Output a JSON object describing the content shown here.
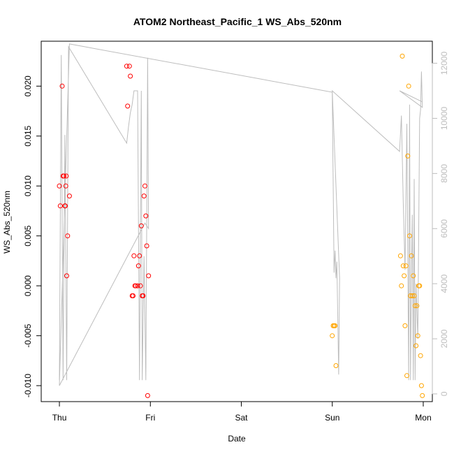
{
  "chart_data": {
    "type": "scatter",
    "title": "ATOM2 Northeast_Pacific_1 WS_Abs_520nm",
    "xlabel": "Date",
    "ylabel": "WS_Abs_520nm",
    "x_tick_labels": [
      "Thu",
      "Fri",
      "Sat",
      "Sun",
      "Mon"
    ],
    "x_tick_days": [
      0,
      1,
      2,
      3,
      4
    ],
    "xlim_days": [
      -0.2,
      4.1
    ],
    "ylim": [
      -0.0116,
      0.0245
    ],
    "y_ticks": [
      -0.01,
      -0.005,
      0.0,
      0.005,
      0.01,
      0.015,
      0.02
    ],
    "y_tick_labels": [
      "-0.010",
      "-0.005",
      "0.000",
      "0.005",
      "0.010",
      "0.015",
      "0.020"
    ],
    "y2lim": [
      -280,
      12800
    ],
    "y2_ticks": [
      0,
      2000,
      4000,
      6000,
      8000,
      10000,
      12000
    ],
    "y2_tick_labels": [
      "0",
      "2000",
      "4000",
      "6000",
      "8000",
      "10000",
      "12000"
    ],
    "grid": false,
    "series": [
      {
        "color": "#ff0000",
        "points": [
          [
            0.0,
            0.01
          ],
          [
            0.01,
            0.008
          ],
          [
            0.03,
            0.02
          ],
          [
            0.04,
            0.011
          ],
          [
            0.05,
            0.011
          ],
          [
            0.06,
            0.008
          ],
          [
            0.065,
            0.008
          ],
          [
            0.07,
            0.01
          ],
          [
            0.075,
            0.011
          ],
          [
            0.08,
            0.001
          ],
          [
            0.09,
            0.005
          ],
          [
            0.11,
            0.009
          ],
          [
            0.74,
            0.022
          ],
          [
            0.75,
            0.018
          ],
          [
            0.77,
            0.022
          ],
          [
            0.78,
            0.021
          ],
          [
            0.8,
            -0.001
          ],
          [
            0.81,
            -0.001
          ],
          [
            0.82,
            0.003
          ],
          [
            0.83,
            0.0
          ],
          [
            0.84,
            0.0
          ],
          [
            0.86,
            0.0
          ],
          [
            0.87,
            0.002
          ],
          [
            0.88,
            0.003
          ],
          [
            0.89,
            0.0
          ],
          [
            0.9,
            0.006
          ],
          [
            0.91,
            -0.001
          ],
          [
            0.92,
            -0.001
          ],
          [
            0.93,
            0.009
          ],
          [
            0.94,
            0.01
          ],
          [
            0.95,
            0.007
          ],
          [
            0.96,
            0.004
          ],
          [
            0.97,
            -0.011
          ],
          [
            0.98,
            0.001
          ]
        ]
      },
      {
        "color": "#ffa500",
        "points": [
          [
            3.0,
            -0.005
          ],
          [
            3.01,
            -0.004
          ],
          [
            3.02,
            -0.004
          ],
          [
            3.03,
            -0.004
          ],
          [
            3.04,
            -0.008
          ],
          [
            3.75,
            0.003
          ],
          [
            3.76,
            0.0
          ],
          [
            3.77,
            0.023
          ],
          [
            3.78,
            0.002
          ],
          [
            3.79,
            0.001
          ],
          [
            3.8,
            -0.004
          ],
          [
            3.81,
            0.002
          ],
          [
            3.82,
            -0.009
          ],
          [
            3.83,
            0.013
          ],
          [
            3.84,
            0.02
          ],
          [
            3.85,
            0.005
          ],
          [
            3.86,
            -0.001
          ],
          [
            3.87,
            0.003
          ],
          [
            3.88,
            -0.001
          ],
          [
            3.89,
            0.001
          ],
          [
            3.9,
            -0.001
          ],
          [
            3.91,
            -0.002
          ],
          [
            3.92,
            -0.006
          ],
          [
            3.93,
            -0.002
          ],
          [
            3.94,
            -0.005
          ],
          [
            3.95,
            0.0
          ],
          [
            3.96,
            0.0
          ],
          [
            3.97,
            -0.007
          ],
          [
            3.98,
            -0.01
          ],
          [
            3.99,
            -0.011
          ]
        ]
      },
      {
        "color": "#bdbdbd",
        "axis": "right",
        "style": "line",
        "points": [
          [
            0.0,
            500
          ],
          [
            0.02,
            12300
          ],
          [
            0.04,
            500
          ],
          [
            0.06,
            9400
          ],
          [
            0.08,
            500
          ],
          [
            0.1,
            12600
          ],
          [
            0.74,
            9100
          ],
          [
            0.76,
            9700
          ],
          [
            0.78,
            10200
          ],
          [
            0.8,
            10500
          ],
          [
            0.82,
            11000
          ],
          [
            0.84,
            11000
          ],
          [
            0.86,
            11000
          ],
          [
            0.88,
            500
          ],
          [
            0.9,
            11000
          ],
          [
            0.91,
            500
          ],
          [
            0.93,
            5000
          ],
          [
            0.95,
            500
          ],
          [
            0.97,
            12200
          ],
          [
            0.98,
            6000
          ],
          [
            0.94,
            6200
          ],
          [
            0.0,
            300
          ],
          [
            0.11,
            12700
          ],
          [
            3.0,
            10950
          ],
          [
            3.02,
            4400
          ],
          [
            3.03,
            5200
          ],
          [
            3.04,
            4200
          ],
          [
            3.05,
            4800
          ],
          [
            3.07,
            700
          ],
          [
            3.08,
            4200
          ],
          [
            3.0,
            11000
          ],
          [
            3.74,
            8800
          ],
          [
            3.76,
            10100
          ],
          [
            3.78,
            7000
          ],
          [
            3.8,
            4500
          ],
          [
            3.82,
            9800
          ],
          [
            3.84,
            500
          ],
          [
            3.85,
            10500
          ],
          [
            3.86,
            500
          ],
          [
            3.87,
            4200
          ],
          [
            3.88,
            6500
          ],
          [
            3.89,
            500
          ],
          [
            3.9,
            7800
          ],
          [
            3.91,
            500
          ],
          [
            3.92,
            4000
          ],
          [
            3.94,
            2000
          ],
          [
            3.96,
            10000
          ],
          [
            3.97,
            10300
          ],
          [
            3.98,
            11700
          ],
          [
            3.99,
            10400
          ],
          [
            3.74,
            11000
          ],
          [
            3.99,
            10600
          ]
        ]
      }
    ]
  }
}
